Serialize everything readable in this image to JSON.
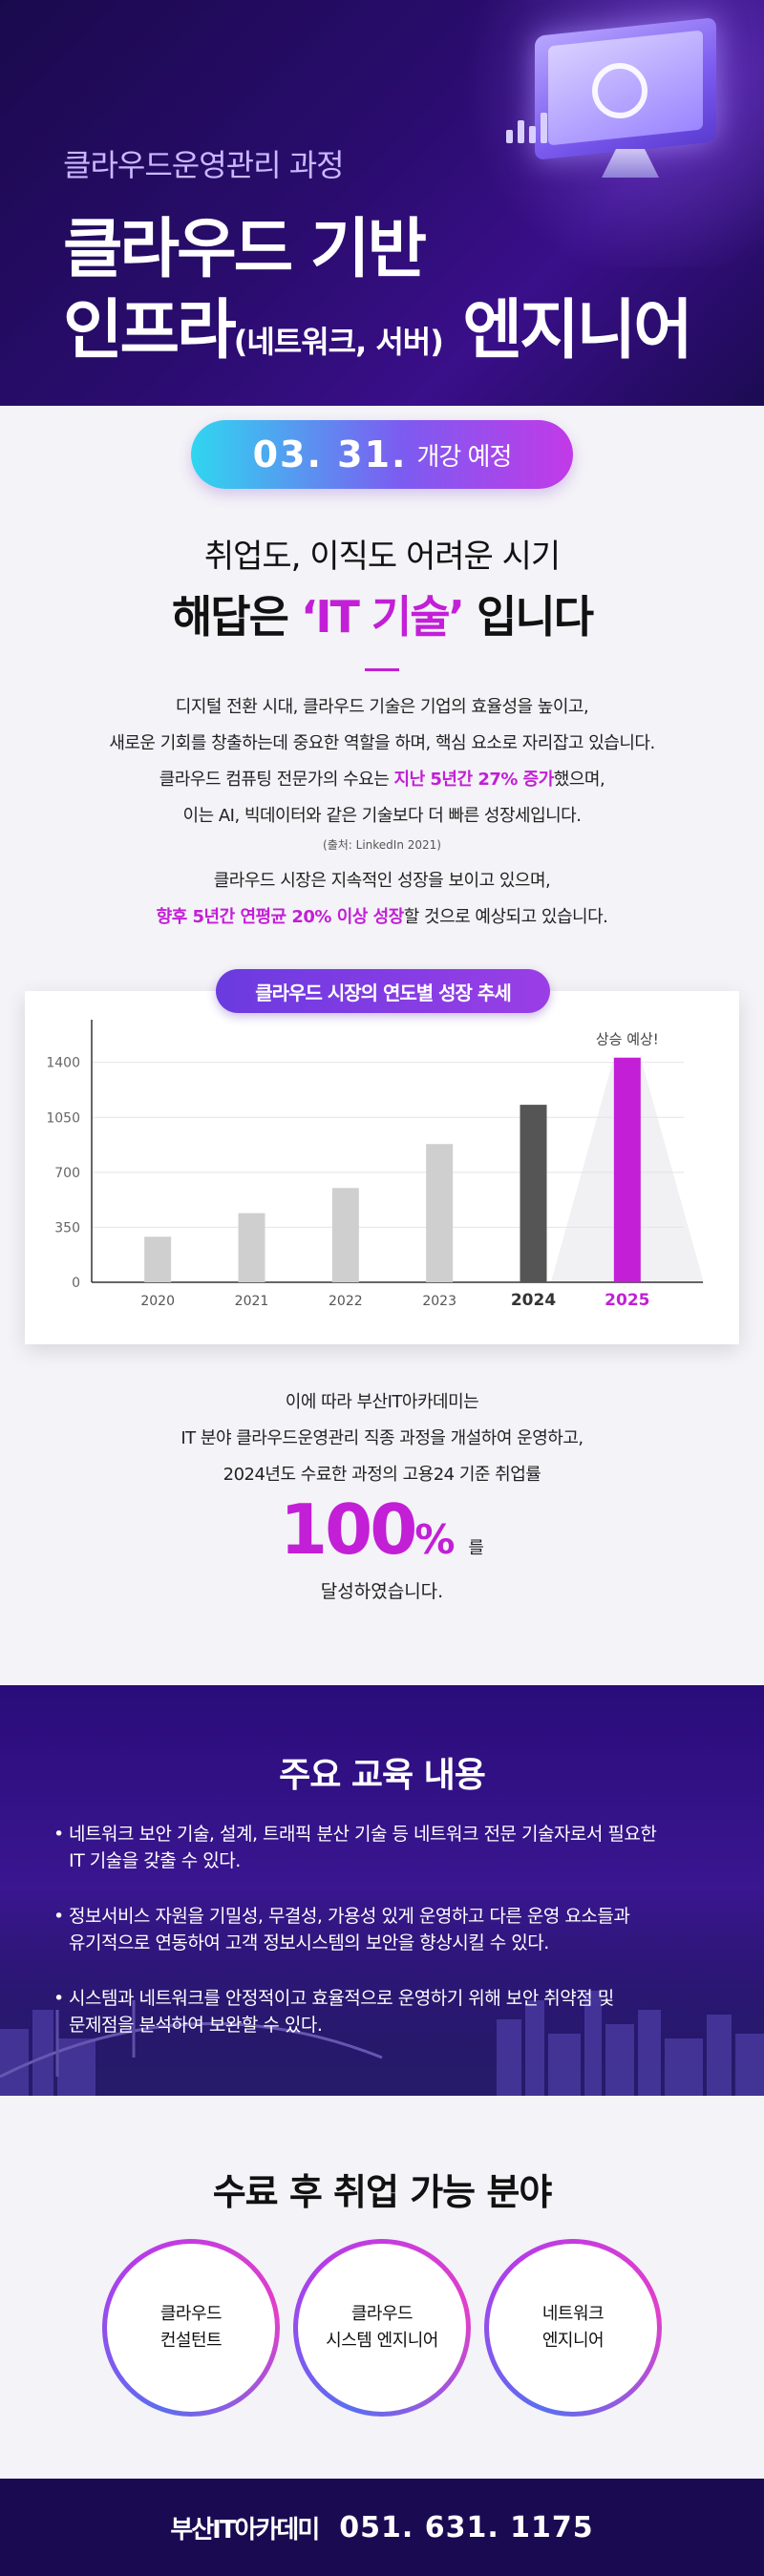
{
  "hero": {
    "course_name": "클라우드운영관리 과정",
    "title_line1": "클라우드 기반",
    "title_line2_a": "인프라",
    "title_line2_small": "(네트워크, 서버)",
    "title_line2_b": " 엔지니어"
  },
  "badge": {
    "date": "03. 31.",
    "label": "개강 예정"
  },
  "intro": {
    "line1": "취업도, 이직도 어려운 시기",
    "line2_pre": "해답은 ",
    "line2_highlight": "‘IT 기술’",
    "line2_post": " 입니다"
  },
  "paragraph1": {
    "line1": "디지털 전환 시대, 클라우드 기술은 기업의 효율성을 높이고,",
    "line2": "새로운 기회를 창출하는데 중요한 역할을 하며, 핵심 요소로 자리잡고 있습니다.",
    "line3_pre": "클라우드 컴퓨팅 전문가의 수요는 ",
    "line3_highlight": "지난 5년간 27% 증가",
    "line3_post": "했으며,",
    "line4": "이는 AI, 빅데이터와 같은 기술보다 더 빠른 성장세입니다."
  },
  "source": "(출처: LinkedIn 2021)",
  "paragraph2": {
    "line1": "클라우드 시장은 지속적인 성장을 보이고 있으며,",
    "line2_highlight": "향후 5년간 연평균 20% 이상 성장",
    "line2_post": "할 것으로 예상되고 있습니다."
  },
  "chart_pill": "클라우드 시장의 연도별 성장 추세",
  "chart_data": {
    "type": "bar",
    "title": "클라우드 시장의 연도별 성장 추세",
    "categories": [
      "2020",
      "2021",
      "2022",
      "2023",
      "2024",
      "2025"
    ],
    "values": [
      290,
      440,
      600,
      880,
      1130,
      1430
    ],
    "yticks": [
      0,
      350,
      700,
      1050,
      1400
    ],
    "ylim": [
      0,
      1550
    ],
    "annotation": "상승 예상!",
    "grid": true,
    "colors": {
      "past": "#cfcfcf",
      "current": "#555555",
      "forecast": "#c21fd6"
    }
  },
  "result": {
    "line1": "이에 따라 부산IT아카데미는",
    "line2": "IT 분야 클라우드운영관리 직종 과정을 개설하여 운영하고,",
    "line3": "2024년도 수료한 과정의 고용24 기준 취업률",
    "rate_number": "100",
    "rate_sign": "%",
    "rate_suffix": "를",
    "line4": "달성하였습니다."
  },
  "curriculum": {
    "title": "주요 교육 내용",
    "items": [
      {
        "l1": "네트워크 보안 기술, 설계, 트래픽 분산 기술 등 네트워크 전문 기술자로서 필요한",
        "l2": "IT 기술을 갖출 수 있다."
      },
      {
        "l1": "정보서비스 자원을 기밀성, 무결성, 가용성 있게 운영하고 다른 운영 요소들과",
        "l2": "유기적으로 연동하여 고객 정보시스템의 보안을 향상시킬 수 있다."
      },
      {
        "l1": "시스템과 네트워크를 안정적이고 효율적으로 운영하기 위해 보안 취약점 및",
        "l2": "문제점을 분석하여 보완할 수 있다."
      }
    ]
  },
  "careers": {
    "title": "수료 후 취업 가능 분야",
    "items": [
      {
        "l1": "클라우드",
        "l2": "컨설턴트"
      },
      {
        "l1": "클라우드",
        "l2": "시스템 엔지니어"
      },
      {
        "l1": "네트워크",
        "l2": "엔지니어"
      }
    ]
  },
  "footer": {
    "brand": "부산IT아카데미",
    "phone": "051. 631. 1175"
  }
}
